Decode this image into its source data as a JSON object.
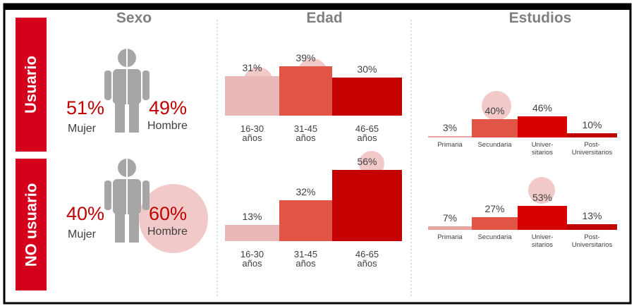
{
  "rows": [
    "Usuario",
    "NO usuario"
  ],
  "chart_data": [
    {
      "type": "pictogram",
      "title": "Sexo",
      "categories": [
        "Mujer",
        "Hombre"
      ],
      "series": [
        {
          "values": [
            51,
            49
          ],
          "value_labels": [
            "51%",
            "49%"
          ]
        },
        {
          "values": [
            40,
            60
          ],
          "value_labels": [
            "40%",
            "60%"
          ]
        }
      ]
    },
    {
      "type": "bar",
      "title": "Edad",
      "categories": [
        "16-30\naños",
        "31-45\naños",
        "46-65\naños"
      ],
      "colors": [
        "#e9b9b9",
        "#e05545",
        "#c50000"
      ],
      "series": [
        {
          "values": [
            31,
            39,
            30
          ],
          "value_labels": [
            "31%",
            "39%",
            "30%"
          ]
        },
        {
          "values": [
            13,
            32,
            56
          ],
          "value_labels": [
            "13%",
            "32%",
            "56%"
          ]
        }
      ]
    },
    {
      "type": "bar",
      "title": "Estudios",
      "categories": [
        "Primaria",
        "Secundaria",
        "Univer-\nsitarios",
        "Post-\nUniversitarios"
      ],
      "colors": [
        "#e8a3a3",
        "#e05545",
        "#d60000",
        "#c00000"
      ],
      "series": [
        {
          "values": [
            3,
            40,
            46,
            10
          ],
          "value_labels": [
            "3%",
            "40%",
            "46%",
            "10%"
          ]
        },
        {
          "values": [
            7,
            27,
            53,
            13
          ],
          "value_labels": [
            "7%",
            "27%",
            "53%",
            "13%"
          ]
        }
      ]
    }
  ]
}
